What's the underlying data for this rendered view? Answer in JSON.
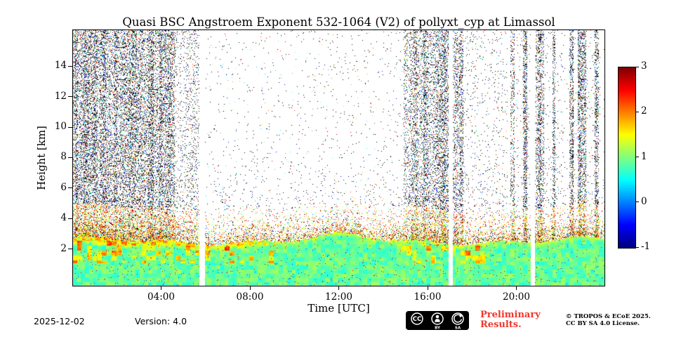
{
  "chart_data": {
    "type": "heatmap",
    "title": "Quasi BSC Angstroem Exponent 532-1064 (V2) of pollyxt_cyp at Limassol",
    "xlabel": "Time [UTC]",
    "ylabel": "Height [km]",
    "xlim_hours": [
      0,
      24
    ],
    "ylim_km": [
      -0.45,
      16.4
    ],
    "x_ticks": [
      {
        "hour": 4,
        "label": "04:00"
      },
      {
        "hour": 8,
        "label": "08:00"
      },
      {
        "hour": 12,
        "label": "12:00"
      },
      {
        "hour": 16,
        "label": "16:00"
      },
      {
        "hour": 20,
        "label": "20:00"
      }
    ],
    "y_ticks_km": [
      2,
      4,
      6,
      8,
      10,
      12,
      14
    ],
    "colorbar": {
      "min": -1,
      "max": 3,
      "ticks": [
        3,
        2,
        1,
        0,
        -1
      ],
      "colormap": "jet",
      "stops": [
        [
          "0.0",
          "#000080"
        ],
        [
          "0.125",
          "#0000ff"
        ],
        [
          "0.375",
          "#00ffff"
        ],
        [
          "0.625",
          "#ffff00"
        ],
        [
          "0.875",
          "#ff0000"
        ],
        [
          "1.0",
          "#800000"
        ]
      ]
    },
    "aerosol_layer": {
      "mean_top_km": 2.55,
      "typical_angstroem_value": 1.0,
      "morning_rim_value": 2.0,
      "mottle_hours": [
        [
          0,
          9.2
        ],
        [
          14.6,
          18.6
        ]
      ]
    },
    "noise_zones": [
      {
        "from_hour": 0,
        "to_hour": 4.6,
        "type": "dense",
        "density": 0.3
      },
      {
        "from_hour": 4.6,
        "to_hour": 5.72,
        "type": "medium",
        "density": 0.1
      },
      {
        "from_hour": 5.95,
        "to_hour": 14.9,
        "type": "sparse",
        "density": 0.012
      },
      {
        "from_hour": 14.9,
        "to_hour": 17.6,
        "type": "dense",
        "density": 0.26
      },
      {
        "from_hour": 17.6,
        "to_hour": 19.6,
        "type": "sparse",
        "density": 0.035
      },
      {
        "from_hour": 19.6,
        "to_hour": 24,
        "type": "striped",
        "density": 0.3
      }
    ],
    "gaps_hours": [
      [
        5.72,
        5.95
      ],
      [
        16.92,
        17.12
      ],
      [
        20.62,
        20.82
      ]
    ]
  },
  "footer": {
    "date": "2025-12-02",
    "version": "Version: 4.0",
    "preliminary_line1": "Preliminary",
    "preliminary_line2": "Results.",
    "preliminary_color": "#f0382c",
    "copyright_line1": "© TROPOS & ECoE 2025.",
    "copyright_line2": "CC BY SA 4.0 License.",
    "badge": {
      "cc": "CC",
      "by": "BY",
      "sa": "SA"
    }
  }
}
